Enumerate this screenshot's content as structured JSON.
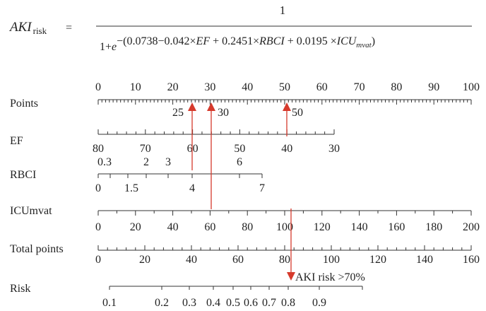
{
  "formula": {
    "lhs_main": "AKI",
    "lhs_sub": "risk",
    "equals": "=",
    "numerator": "1",
    "den_base": "1+",
    "den_e": "e",
    "exp_a": "−(0.0738−0.042×",
    "exp_ef": "EF",
    "exp_b": " + 0.2451×",
    "exp_rbci": "RBCI",
    "exp_c": " + 0.0195 ×",
    "exp_icu": "ICU",
    "exp_icu_sub": "mvat",
    "exp_close": ")"
  },
  "nomogram": {
    "points": {
      "label": "Points",
      "ticks": [
        "0",
        "10",
        "20",
        "30",
        "40",
        "50",
        "60",
        "70",
        "80",
        "90",
        "100"
      ]
    },
    "ef": {
      "label": "EF",
      "ticks": [
        "80",
        "70",
        "60",
        "50",
        "40",
        "30"
      ]
    },
    "rbci": {
      "label": "RBCI",
      "ticks_top": [
        "0.3",
        "2",
        "3",
        "6"
      ],
      "ticks_bottom": [
        "0",
        "1.5",
        "4",
        "7"
      ]
    },
    "icu": {
      "label": "ICUmvat",
      "ticks": [
        "0",
        "20",
        "40",
        "60",
        "80",
        "100",
        "120",
        "140",
        "160",
        "180",
        "200"
      ]
    },
    "total": {
      "label": "Total points",
      "ticks": [
        "0",
        "20",
        "40",
        "60",
        "80",
        "100",
        "120",
        "140",
        "160"
      ]
    },
    "risk": {
      "label": "Risk",
      "ticks": [
        "0.1",
        "0.2",
        "0.3",
        "0.4",
        "0.5",
        "0.6",
        "0.7",
        "0.8",
        "0.9"
      ]
    }
  },
  "annotations": {
    "marker_25": "25",
    "marker_30": "30",
    "marker_50": "50",
    "risk_note": "AKI risk >70%"
  },
  "colors": {
    "arrow": "#d63a2c",
    "axis": "#333333"
  }
}
